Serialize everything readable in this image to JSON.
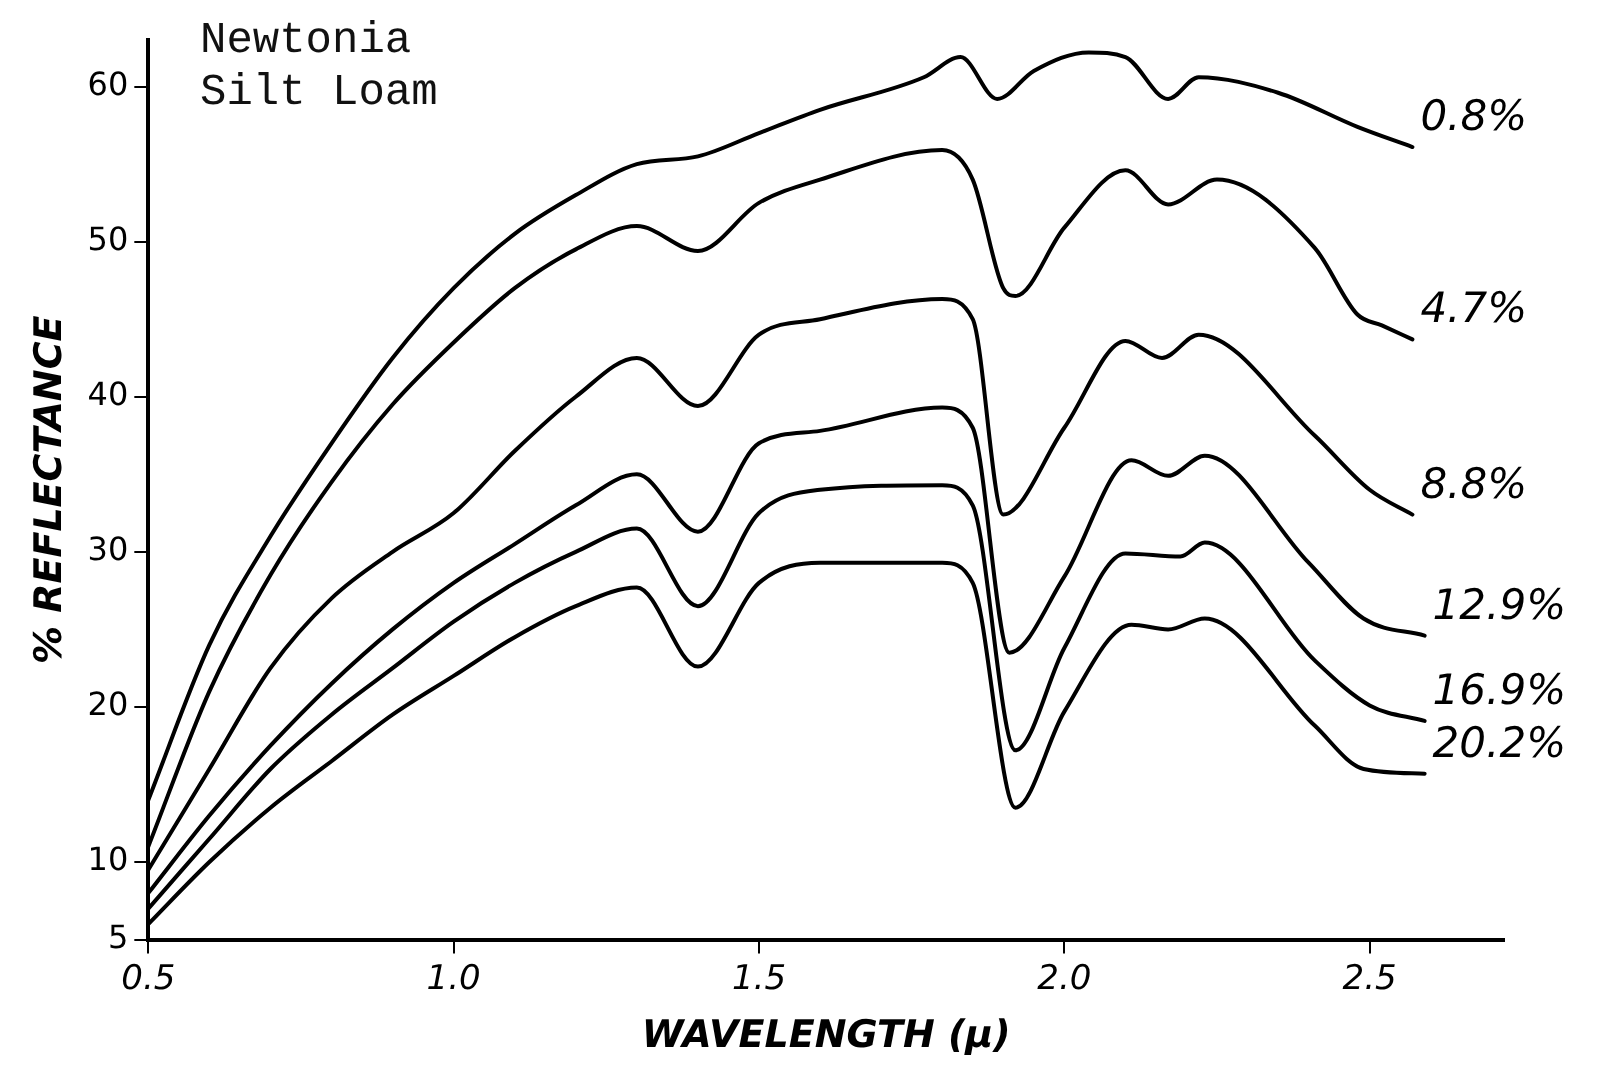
{
  "chart_data": {
    "type": "line",
    "title": "Newtonia Silt Loam",
    "xlabel": "WAVELENGTH (μ)",
    "ylabel": "% REFLECTANCE",
    "xlim": [
      0.5,
      2.72
    ],
    "xticks": [
      {
        "value": 0.5,
        "label": "0.5"
      },
      {
        "value": 1,
        "label": "1.0"
      },
      {
        "value": 1.5,
        "label": "1.5"
      },
      {
        "value": 2,
        "label": "2.0"
      },
      {
        "value": 2.5,
        "label": "2.5"
      }
    ],
    "ylim": [
      5,
      63
    ],
    "yticks": [
      5,
      10,
      20,
      30,
      40,
      50,
      60
    ],
    "grid": false,
    "legend": false,
    "marker": "none",
    "line_style": "solid",
    "series": [
      {
        "name": "0.8%",
        "color": "#000000",
        "x": [
          0.5,
          0.6,
          0.7,
          0.8,
          0.9,
          1.0,
          1.1,
          1.2,
          1.3,
          1.4,
          1.5,
          1.6,
          1.77,
          1.83,
          1.89,
          1.95,
          2.04,
          2.1,
          2.17,
          2.22,
          2.35,
          2.48,
          2.57
        ],
        "values": [
          14,
          24,
          31,
          37,
          42.5,
          47,
          50.5,
          53,
          55,
          55.5,
          57,
          58.5,
          60.6,
          61.9,
          59.2,
          61,
          62.2,
          61.9,
          59.2,
          60.6,
          59.6,
          57.4,
          56.1
        ]
      },
      {
        "name": "4.7%",
        "color": "#000000",
        "x": [
          0.5,
          0.6,
          0.7,
          0.8,
          0.9,
          1.0,
          1.1,
          1.2,
          1.3,
          1.4,
          1.5,
          1.6,
          1.8,
          1.85,
          1.9,
          1.92,
          2.0,
          2.1,
          2.17,
          2.25,
          2.41,
          2.48,
          2.52,
          2.57
        ],
        "values": [
          11,
          21,
          28.5,
          34.5,
          39.5,
          43.5,
          47,
          49.5,
          51,
          49.4,
          52.5,
          54,
          55.9,
          54,
          47,
          46.5,
          50.9,
          54.6,
          52.4,
          54,
          49.6,
          45.3,
          44.6,
          43.7
        ]
      },
      {
        "name": "8.8%",
        "color": "#000000",
        "x": [
          0.5,
          0.6,
          0.7,
          0.8,
          0.9,
          1.0,
          1.1,
          1.2,
          1.3,
          1.4,
          1.5,
          1.6,
          1.8,
          1.85,
          1.9,
          2.0,
          2.1,
          2.16,
          2.22,
          2.41,
          2.5,
          2.57
        ],
        "values": [
          9.5,
          16,
          22.5,
          27,
          30,
          32.5,
          36.5,
          40,
          42.5,
          39.4,
          44,
          45,
          46.3,
          45,
          32.4,
          38,
          43.6,
          42.5,
          44,
          37.5,
          34,
          32.4
        ]
      },
      {
        "name": "12.9%",
        "color": "#000000",
        "x": [
          0.5,
          0.6,
          0.7,
          0.8,
          0.9,
          1.0,
          1.1,
          1.2,
          1.3,
          1.4,
          1.5,
          1.6,
          1.8,
          1.85,
          1.91,
          2.0,
          2.11,
          2.17,
          2.23,
          2.4,
          2.49,
          2.59
        ],
        "values": [
          8,
          13,
          17.5,
          21.5,
          25,
          28,
          30.5,
          33,
          35,
          31.3,
          37,
          37.8,
          39.3,
          38,
          23.5,
          28.4,
          35.9,
          34.9,
          36.2,
          29.3,
          25.7,
          24.6
        ]
      },
      {
        "name": "16.9%",
        "color": "#000000",
        "x": [
          0.5,
          0.6,
          0.7,
          0.8,
          0.9,
          1.0,
          1.1,
          1.2,
          1.3,
          1.4,
          1.5,
          1.6,
          1.8,
          1.85,
          1.92,
          2.0,
          2.1,
          2.19,
          2.23,
          2.41,
          2.5,
          2.59
        ],
        "values": [
          7,
          11.5,
          16,
          19.5,
          22.5,
          25.5,
          28,
          30,
          31.5,
          26.5,
          32.5,
          34,
          34.3,
          33,
          17.2,
          23.8,
          29.9,
          29.7,
          30.6,
          23,
          20.1,
          19.1
        ]
      },
      {
        "name": "20.2%",
        "color": "#000000",
        "x": [
          0.5,
          0.6,
          0.7,
          0.8,
          0.9,
          1.0,
          1.1,
          1.2,
          1.3,
          1.4,
          1.5,
          1.6,
          1.8,
          1.85,
          1.92,
          2.0,
          2.11,
          2.17,
          2.23,
          2.41,
          2.49,
          2.59
        ],
        "values": [
          6,
          10,
          13.5,
          16.5,
          19.5,
          22,
          24.5,
          26.5,
          27.7,
          22.6,
          28,
          29.3,
          29.3,
          28,
          13.5,
          19.7,
          25.3,
          25,
          25.7,
          18.8,
          16,
          15.7
        ]
      }
    ]
  }
}
